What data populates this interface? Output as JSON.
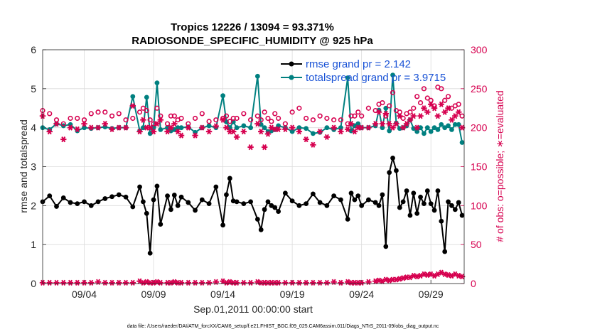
{
  "chart_data": {
    "type": "line",
    "title_line1": "Tropics 12226 / 13094 = 93.371%",
    "title_line2": "RADIOSONDE_SPECIFIC_HUMIDITY @ 925 hPa",
    "xlabel": "Sep.01,2011 00:00:00 start",
    "ylabel_left": "rmse and totalspread",
    "ylabel_right": "# of obs: o=possible; ∗=evaluated",
    "footnote": "data file: /Users/raeder/DAI/ATM_forcXX/CAM6_setup/f.e21.FHIST_BGC.f09_025.CAM6assim.011/Diags_NTrS_2011-09/obs_diag_output.nc",
    "xlim": [
      0,
      30.4
    ],
    "ylim_left": [
      0,
      6
    ],
    "ylim_right": [
      0,
      300
    ],
    "x_ticks": [
      3,
      8,
      13,
      18,
      23,
      28
    ],
    "x_tick_labels": [
      "09/04",
      "09/09",
      "09/14",
      "09/19",
      "09/24",
      "09/29"
    ],
    "y_left_ticks": [
      0,
      1,
      2,
      3,
      4,
      5,
      6
    ],
    "y_right_ticks": [
      0,
      50,
      100,
      150,
      200,
      250,
      300
    ],
    "colors": {
      "rmse": "#000000",
      "spread": "#008080",
      "obs": "#d6004f",
      "legend_text": "#1a53d6",
      "right_axis": "#d6004f"
    },
    "legend": [
      "rmse grand pr = 2.142",
      "totalspread grand pr = 3.9715"
    ],
    "series": [
      {
        "name": "rmse",
        "axis": "left",
        "x": [
          0,
          0.5,
          1,
          1.5,
          2,
          2.5,
          3,
          3.5,
          4,
          4.5,
          5,
          5.5,
          6,
          6.5,
          7,
          7.25,
          7.5,
          7.75,
          8,
          8.25,
          8.5,
          9,
          9.25,
          9.5,
          9.75,
          10,
          10.5,
          11,
          11.5,
          12,
          12.5,
          13,
          13.25,
          13.5,
          13.75,
          14,
          14.5,
          15,
          15.5,
          15.75,
          16,
          16.25,
          16.5,
          16.75,
          17,
          17.5,
          18,
          18.5,
          19,
          19.5,
          20,
          20.5,
          21,
          21.5,
          22,
          22.25,
          22.5,
          22.75,
          23,
          23.5,
          24,
          24.25,
          24.5,
          24.75,
          25,
          25.25,
          25.5,
          25.75,
          26,
          26.25,
          26.5,
          26.75,
          27,
          27.25,
          27.5,
          27.75,
          28,
          28.25,
          28.5,
          28.75,
          29,
          29.25,
          29.5,
          29.75,
          30,
          30.25
        ],
        "values": [
          2.1,
          2.25,
          1.98,
          2.2,
          2.08,
          2.05,
          2.1,
          2.0,
          2.1,
          2.18,
          2.23,
          2.28,
          2.22,
          1.97,
          2.48,
          2.1,
          1.8,
          0.78,
          2.15,
          2.5,
          1.52,
          2.25,
          1.9,
          2.27,
          2.0,
          2.22,
          2.08,
          1.88,
          2.15,
          2.05,
          2.48,
          1.5,
          2.28,
          2.7,
          2.12,
          2.1,
          2.05,
          2.1,
          1.65,
          1.38,
          1.9,
          2.1,
          2.0,
          1.95,
          1.85,
          2.32,
          2.12,
          2.0,
          2.05,
          2.3,
          2.08,
          2.0,
          2.25,
          2.15,
          1.65,
          2.32,
          2.15,
          2.25,
          2.0,
          2.15,
          2.08,
          2.0,
          2.28,
          0.95,
          2.85,
          3.22,
          2.9,
          1.95,
          2.1,
          2.38,
          1.75,
          2.32,
          1.8,
          2.22,
          2.05,
          2.38,
          2.05,
          1.88,
          2.38,
          1.6,
          0.82,
          2.1,
          2.0,
          1.9,
          2.08,
          1.75
        ],
        "marker": "dot"
      },
      {
        "name": "totalspread",
        "axis": "left",
        "x": [
          0,
          0.5,
          1,
          1.5,
          2,
          2.5,
          3,
          3.5,
          4,
          4.5,
          5,
          5.5,
          6,
          6.5,
          7,
          7.25,
          7.5,
          7.75,
          8,
          8.25,
          8.5,
          9,
          9.25,
          9.5,
          9.75,
          10,
          10.5,
          11,
          11.5,
          12,
          12.5,
          13,
          13.25,
          13.5,
          13.75,
          14,
          14.5,
          15,
          15.5,
          15.75,
          16,
          16.25,
          16.5,
          16.75,
          17,
          17.5,
          18,
          18.5,
          19,
          19.5,
          20,
          20.5,
          21,
          21.5,
          22,
          22.25,
          22.5,
          22.75,
          23,
          23.5,
          24,
          24.25,
          24.5,
          24.75,
          25,
          25.25,
          25.5,
          25.75,
          26,
          26.25,
          26.5,
          26.75,
          27,
          27.25,
          27.5,
          27.75,
          28,
          28.25,
          28.5,
          28.75,
          29,
          29.25,
          29.5,
          29.75,
          30,
          30.25
        ],
        "values": [
          4.0,
          3.95,
          4.1,
          4.05,
          4.08,
          3.92,
          4.0,
          3.98,
          4.0,
          4.02,
          3.98,
          4.0,
          4.0,
          4.8,
          3.92,
          4.0,
          4.78,
          3.85,
          4.0,
          5.15,
          3.95,
          4.0,
          3.92,
          3.95,
          4.0,
          4.0,
          4.02,
          3.88,
          4.0,
          4.05,
          4.0,
          4.82,
          4.15,
          4.0,
          4.15,
          4.0,
          4.05,
          4.0,
          5.32,
          4.08,
          4.0,
          3.9,
          3.92,
          3.95,
          4.05,
          4.0,
          3.9,
          4.0,
          3.98,
          3.85,
          3.88,
          4.0,
          3.95,
          4.0,
          5.28,
          3.92,
          4.05,
          4.1,
          4.0,
          4.0,
          4.05,
          4.45,
          4.0,
          4.5,
          3.92,
          5.35,
          4.12,
          3.98,
          4.0,
          4.05,
          4.2,
          3.98,
          3.9,
          4.0,
          3.85,
          4.0,
          3.9,
          4.0,
          3.95,
          4.08,
          4.0,
          4.05,
          3.95,
          4.08,
          4.08,
          3.62
        ],
        "marker": "dot"
      },
      {
        "name": "obs possible",
        "axis": "right",
        "x": [
          0,
          0.5,
          1,
          1.5,
          2,
          2.5,
          3,
          3.5,
          4,
          4.5,
          5,
          5.5,
          6,
          6.5,
          7,
          7.25,
          7.5,
          7.75,
          8,
          8.25,
          8.5,
          9,
          9.25,
          9.5,
          9.75,
          10,
          10.5,
          11,
          11.5,
          12,
          12.5,
          13,
          13.25,
          13.5,
          13.75,
          14,
          14.5,
          15,
          15.5,
          15.75,
          16,
          16.25,
          16.5,
          16.75,
          17,
          17.5,
          18,
          18.5,
          19,
          19.5,
          20,
          20.5,
          21,
          21.5,
          22,
          22.25,
          22.5,
          22.75,
          23,
          23.5,
          24,
          24.25,
          24.5,
          24.75,
          25,
          25.25,
          25.5,
          25.75,
          26,
          26.25,
          26.5,
          26.75,
          27,
          27.25,
          27.5,
          27.75,
          28,
          28.25,
          28.5,
          28.75,
          29,
          29.25,
          29.5,
          29.75,
          30,
          30.25
        ],
        "values": [
          222,
          218,
          210,
          205,
          212,
          212,
          210,
          218,
          220,
          220,
          215,
          218,
          210,
          212,
          220,
          225,
          222,
          210,
          205,
          225,
          215,
          205,
          215,
          215,
          210,
          212,
          205,
          212,
          218,
          208,
          210,
          212,
          215,
          208,
          212,
          212,
          218,
          210,
          215,
          210,
          220,
          212,
          208,
          218,
          212,
          205,
          220,
          225,
          212,
          210,
          215,
          212,
          210,
          210,
          205,
          215,
          215,
          220,
          215,
          225,
          222,
          230,
          232,
          215,
          228,
          245,
          222,
          220,
          212,
          218,
          220,
          225,
          240,
          232,
          250,
          238,
          235,
          228,
          252,
          250,
          235,
          240,
          225,
          228,
          230,
          215
        ],
        "marker": "circle"
      },
      {
        "name": "obs evaluated",
        "axis": "right",
        "x": [
          0,
          0.5,
          1,
          1.5,
          2,
          2.5,
          3,
          3.5,
          4,
          4.5,
          5,
          5.5,
          6,
          6.5,
          7,
          7.25,
          7.5,
          7.75,
          8,
          8.25,
          8.5,
          9,
          9.25,
          9.5,
          9.75,
          10,
          10.5,
          11,
          11.5,
          12,
          12.5,
          13,
          13.25,
          13.5,
          13.75,
          14,
          14.5,
          15,
          15.5,
          15.75,
          16,
          16.25,
          16.5,
          16.75,
          17,
          17.5,
          18,
          18.5,
          19,
          19.5,
          20,
          20.5,
          21,
          21.5,
          22,
          22.25,
          22.5,
          22.75,
          23,
          23.5,
          24,
          24.25,
          24.5,
          24.75,
          25,
          25.25,
          25.5,
          25.75,
          26,
          26.25,
          26.5,
          26.75,
          27,
          27.25,
          27.5,
          27.75,
          28,
          28.25,
          28.5,
          28.75,
          29,
          29.25,
          29.5,
          29.75,
          30,
          30.25
        ],
        "values": [
          215,
          195,
          205,
          185,
          200,
          198,
          205,
          200,
          200,
          205,
          198,
          200,
          200,
          228,
          195,
          210,
          200,
          200,
          195,
          205,
          210,
          195,
          200,
          205,
          195,
          190,
          200,
          190,
          200,
          195,
          202,
          210,
          200,
          195,
          195,
          188,
          195,
          175,
          205,
          195,
          175,
          192,
          200,
          198,
          198,
          198,
          200,
          195,
          185,
          178,
          195,
          188,
          200,
          195,
          198,
          205,
          195,
          200,
          200,
          200,
          205,
          220,
          205,
          218,
          205,
          200,
          205,
          215,
          200,
          205,
          210,
          215,
          200,
          215,
          225,
          220,
          230,
          225,
          215,
          230,
          220,
          225,
          210,
          215,
          220,
          200
        ],
        "marker": "star"
      },
      {
        "name": "obs evaluated low",
        "axis": "right",
        "x": [
          0,
          0.5,
          1,
          1.5,
          2,
          2.5,
          3,
          3.5,
          4,
          4.5,
          5,
          5.5,
          6,
          6.5,
          7,
          7.25,
          7.5,
          7.75,
          8,
          8.25,
          8.5,
          9,
          9.25,
          9.5,
          9.75,
          10,
          10.5,
          11,
          11.5,
          12,
          12.5,
          13,
          13.25,
          13.5,
          13.75,
          14,
          14.5,
          15,
          15.5,
          15.75,
          16,
          16.25,
          16.5,
          16.75,
          17,
          17.5,
          18,
          18.5,
          19,
          19.5,
          20,
          20.5,
          21,
          21.5,
          22,
          22.25,
          22.5,
          22.75,
          23,
          23.5,
          24,
          24.25,
          24.5,
          24.75,
          25,
          25.25,
          25.5,
          25.75,
          26,
          26.25,
          26.5,
          26.75,
          27,
          27.25,
          27.5,
          27.75,
          28,
          28.25,
          28.5,
          28.75,
          29,
          29.25,
          29.5,
          29.75,
          30,
          30.25
        ],
        "values": [
          1,
          1,
          1,
          1,
          1,
          1,
          1,
          1,
          2,
          1,
          1,
          1,
          1,
          1,
          3,
          1,
          2,
          1,
          1,
          2,
          1,
          1,
          1,
          2,
          1,
          1,
          1,
          1,
          1,
          1,
          2,
          3,
          1,
          2,
          1,
          1,
          1,
          1,
          2,
          1,
          1,
          1,
          1,
          1,
          1,
          1,
          1,
          1,
          1,
          1,
          1,
          1,
          2,
          1,
          2,
          1,
          1,
          1,
          1,
          2,
          3,
          4,
          3,
          5,
          4,
          5,
          5,
          6,
          7,
          8,
          8,
          10,
          9,
          10,
          12,
          11,
          12,
          10,
          12,
          14,
          12,
          11,
          10,
          12,
          10,
          9
        ],
        "marker": "star"
      }
    ]
  }
}
